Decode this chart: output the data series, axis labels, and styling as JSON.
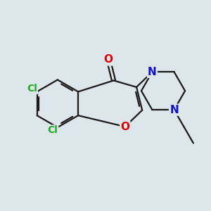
{
  "bg_color": "#dde6eb",
  "bond_color": "#1a1a1a",
  "bond_width": 1.6,
  "dbo": 0.055,
  "atom_colors": {
    "O": "#dd0000",
    "N": "#1010cc",
    "Cl": "#22aa22",
    "C": "#1a1a1a"
  },
  "fs": 10
}
